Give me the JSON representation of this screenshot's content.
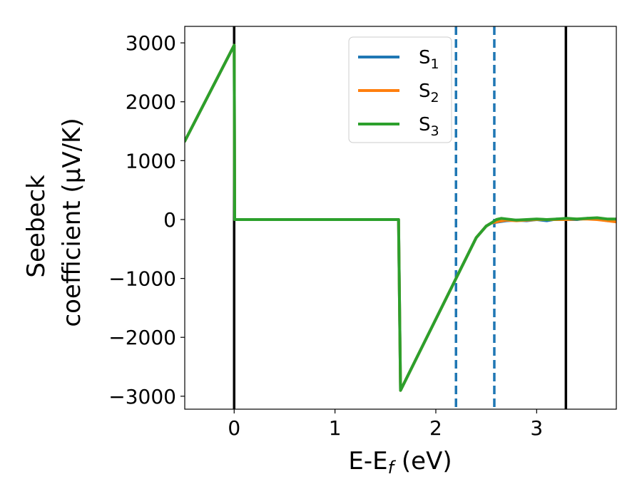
{
  "chart_data": {
    "type": "line",
    "xlabel_main": "E-E",
    "xlabel_sub": "f",
    "xlabel_unit": " (eV)",
    "ylabel_line1": "Seebeck",
    "ylabel_line2": "coefficient  (μV/K)",
    "xlim": [
      -0.49,
      3.79
    ],
    "ylim": [
      -3220,
      3280
    ],
    "xticks": [
      0,
      1,
      2,
      3
    ],
    "xtick_labels": [
      "0",
      "1",
      "2",
      "3"
    ],
    "yticks": [
      3000,
      2000,
      1000,
      0,
      -1000,
      -2000,
      -3000
    ],
    "ytick_labels": [
      "3000",
      "2000",
      "1000",
      "0",
      "−1000",
      "−2000",
      "−3000"
    ],
    "vlines": [
      {
        "x": 0.0,
        "style": "solid",
        "color": "#000000"
      },
      {
        "x": 3.29,
        "style": "solid",
        "color": "#000000"
      },
      {
        "x": 2.2,
        "style": "dashed",
        "color": "#1f77b4"
      },
      {
        "x": 2.58,
        "style": "dashed",
        "color": "#1f77b4"
      }
    ],
    "legend_placement": "upper-center",
    "series": [
      {
        "name": "S",
        "sub": "1",
        "color": "#1f77b4",
        "x": [
          -0.49,
          0.0,
          0.005,
          1.62,
          1.63,
          1.65,
          2.4,
          2.5,
          2.55,
          2.62,
          2.7,
          2.8,
          2.9,
          3.0,
          3.1,
          3.2,
          3.3,
          3.4,
          3.5,
          3.6,
          3.7,
          3.79
        ],
        "y": [
          1330,
          2960,
          0,
          0,
          0,
          -2900,
          -310,
          -110,
          -60,
          -40,
          -20,
          -10,
          -20,
          0,
          -20,
          10,
          0,
          0,
          20,
          10,
          -20,
          -20
        ]
      },
      {
        "name": "S",
        "sub": "2",
        "color": "#ff7f0e",
        "x": [
          -0.49,
          0.0,
          0.005,
          1.62,
          1.63,
          1.65,
          2.4,
          2.5,
          2.55,
          2.62,
          2.7,
          2.8,
          2.9,
          3.0,
          3.1,
          3.2,
          3.3,
          3.4,
          3.5,
          3.6,
          3.7,
          3.79
        ],
        "y": [
          1330,
          2960,
          0,
          0,
          0,
          -2900,
          -310,
          -110,
          -60,
          -30,
          -10,
          -20,
          -10,
          0,
          0,
          0,
          0,
          10,
          10,
          0,
          -20,
          -40
        ]
      },
      {
        "name": "S",
        "sub": "3",
        "color": "#2ca02c",
        "x": [
          -0.49,
          0.0,
          0.005,
          1.62,
          1.63,
          1.65,
          2.4,
          2.5,
          2.55,
          2.6,
          2.65,
          2.7,
          2.8,
          2.9,
          3.0,
          3.1,
          3.2,
          3.3,
          3.4,
          3.5,
          3.6,
          3.7,
          3.79
        ],
        "y": [
          1330,
          2960,
          0,
          0,
          0,
          -2900,
          -310,
          -110,
          -60,
          0,
          20,
          10,
          -10,
          0,
          10,
          0,
          10,
          20,
          10,
          20,
          30,
          10,
          10
        ]
      }
    ]
  }
}
